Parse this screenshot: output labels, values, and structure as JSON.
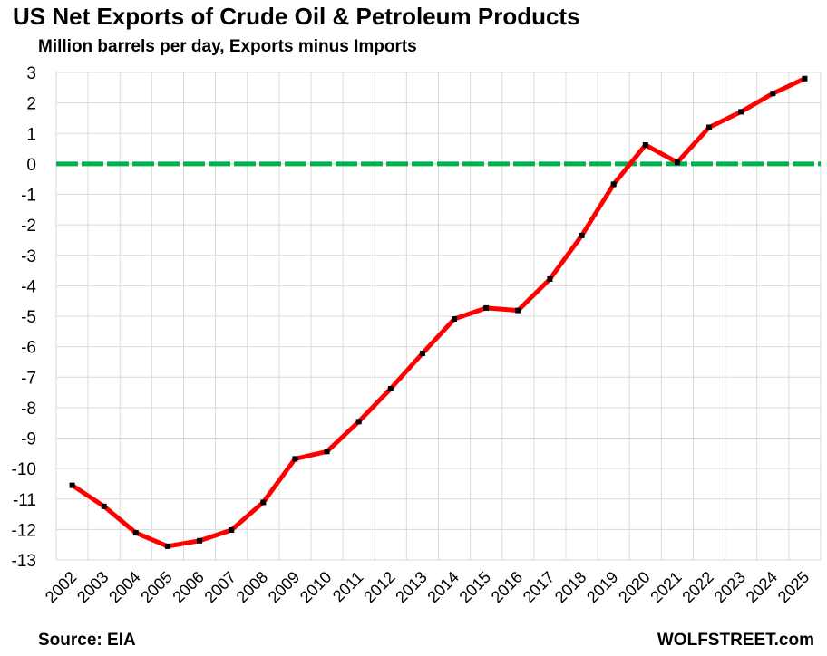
{
  "chart_data": {
    "type": "line",
    "title": "US Net Exports of Crude Oil & Petroleum Products",
    "subtitle": "Million barrels per day, Exports minus Imports",
    "categories": [
      "2002",
      "2003",
      "2004",
      "2005",
      "2006",
      "2007",
      "2008",
      "2009",
      "2010",
      "2011",
      "2012",
      "2013",
      "2014",
      "2015",
      "2016",
      "2017",
      "2018",
      "2019",
      "2020",
      "2021",
      "2022",
      "2023",
      "2024",
      "2025"
    ],
    "series": [
      {
        "values": [
          -10.55,
          -11.24,
          -12.11,
          -12.55,
          -12.37,
          -12.02,
          -11.11,
          -9.68,
          -9.44,
          -8.46,
          -7.38,
          -6.22,
          -5.09,
          -4.73,
          -4.81,
          -3.78,
          -2.35,
          -0.67,
          0.62,
          0.05,
          1.2,
          1.71,
          2.31,
          2.8
        ],
        "color": "#ff0000"
      }
    ],
    "ylim": [
      -13,
      3
    ],
    "yticks": [
      "3",
      "2",
      "1",
      "0",
      "-1",
      "-2",
      "-3",
      "-4",
      "-5",
      "-6",
      "-7",
      "-8",
      "-9",
      "-10",
      "-11",
      "-12",
      "-13"
    ],
    "zero_line_color": "#00b050",
    "marker_color": "#000000",
    "grid": true,
    "source": "Source: EIA",
    "brand": "WOLFSTREET.com"
  }
}
